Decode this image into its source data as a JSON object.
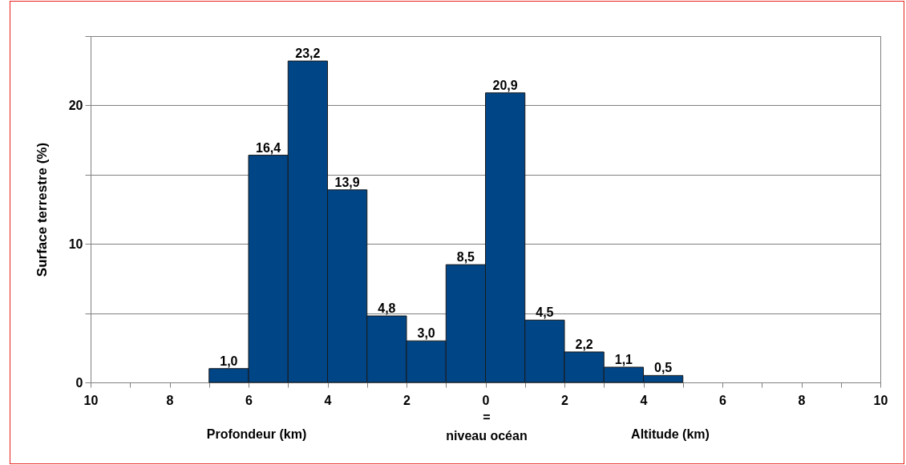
{
  "chart_data": {
    "type": "histogram",
    "ylabel": "Surface terrestre (%)",
    "bins": [
      -7,
      -6,
      -5,
      -4,
      -3,
      -2,
      -1,
      0,
      1,
      2,
      3,
      4,
      5
    ],
    "values": [
      1.0,
      16.4,
      23.2,
      13.9,
      4.8,
      3.0,
      8.5,
      20.9,
      4.5,
      2.2,
      1.1,
      0.5
    ],
    "value_labels": [
      "1,0",
      "16,4",
      "23,2",
      "13,9",
      "4,8",
      "3,0",
      "8,5",
      "20,9",
      "4,5",
      "2,2",
      "1,1",
      "0,5"
    ],
    "color": "#004586",
    "xlim": [
      -10,
      10
    ],
    "xticks": [
      {
        "value": -10,
        "label": "10"
      },
      {
        "value": -9,
        "label": null
      },
      {
        "value": -8,
        "label": "8"
      },
      {
        "value": -7,
        "label": null
      },
      {
        "value": -6,
        "label": "6"
      },
      {
        "value": -5,
        "label": null
      },
      {
        "value": -4,
        "label": "4"
      },
      {
        "value": -3,
        "label": null
      },
      {
        "value": -2,
        "label": "2"
      },
      {
        "value": -1,
        "label": null
      },
      0,
      {
        "value": 1,
        "label": null
      },
      2,
      {
        "value": 3,
        "label": null
      },
      4,
      {
        "value": 5,
        "label": null
      },
      6,
      {
        "value": 7,
        "label": null
      },
      8,
      {
        "value": 9,
        "label": null
      },
      10
    ],
    "ylim": [
      0,
      25
    ],
    "yticks": [
      0,
      {
        "value": 5,
        "label": null
      },
      10,
      {
        "value": 15,
        "label": null
      },
      20,
      {
        "value": 25,
        "label": null
      }
    ],
    "grid": "y",
    "annotations": [
      "Profondeur (km)",
      "=",
      "niveau océan",
      "Altitude (km)"
    ]
  }
}
